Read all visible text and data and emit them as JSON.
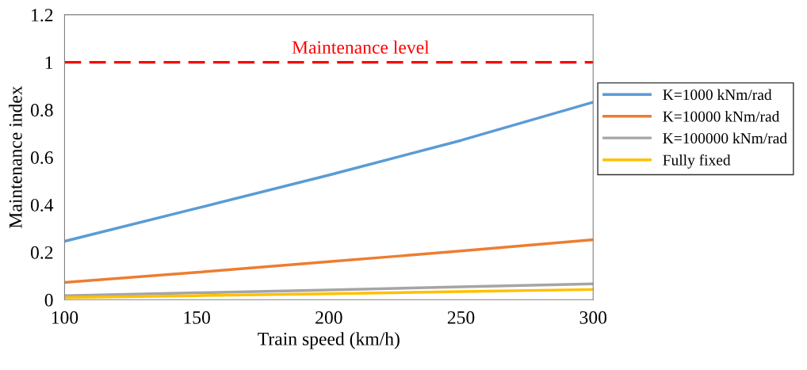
{
  "chart_data": {
    "type": "line",
    "xlabel": "Train speed (km/h)",
    "ylabel": "Maintenance index",
    "x": [
      100,
      150,
      200,
      250,
      300
    ],
    "series": [
      {
        "name": "K=1000 kNm/rad",
        "color": "#5b9bd5",
        "values": [
          0.246,
          0.385,
          0.525,
          0.671,
          0.832
        ]
      },
      {
        "name": "K=10000 kNm/rad",
        "color": "#ed7d31",
        "values": [
          0.073,
          0.115,
          0.16,
          0.205,
          0.253
        ]
      },
      {
        "name": "K=100000 kNm/rad",
        "color": "#a5a5a5",
        "values": [
          0.017,
          0.029,
          0.041,
          0.054,
          0.067
        ]
      },
      {
        "name": "Fully fixed",
        "color": "#ffc000",
        "values": [
          0.009,
          0.017,
          0.025,
          0.034,
          0.043
        ]
      }
    ],
    "ref_lines": [
      {
        "axis": "y",
        "value": 1,
        "label": "Maintenance level",
        "color": "#ff0000",
        "line_style": "dashed"
      }
    ],
    "xlim": [
      100,
      300
    ],
    "xticks": [
      100,
      150,
      200,
      250,
      300
    ],
    "ylim": [
      0,
      1.2
    ],
    "yticks": [
      0,
      0.2,
      0.4,
      0.6,
      0.8,
      1,
      1.2
    ],
    "grid": false,
    "legend": "right",
    "marker": "none",
    "line_style": "solid"
  }
}
